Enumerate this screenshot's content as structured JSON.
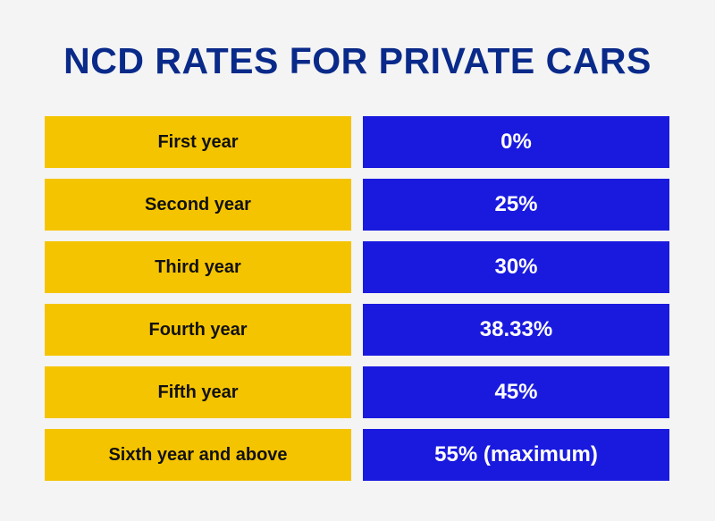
{
  "title": "NCD RATES FOR PRIVATE CARS",
  "colors": {
    "title": "#0a2a8a",
    "left_cell_bg": "#f5c400",
    "right_cell_bg": "#1a1adf",
    "background": "#f4f4f4"
  },
  "rows": [
    {
      "label": "First year",
      "value": "0%"
    },
    {
      "label": "Second year",
      "value": "25%"
    },
    {
      "label": "Third year",
      "value": "30%"
    },
    {
      "label": "Fourth year",
      "value": "38.33%"
    },
    {
      "label": "Fifth year",
      "value": "45%"
    },
    {
      "label": "Sixth year and above",
      "value": "55% (maximum)"
    }
  ]
}
